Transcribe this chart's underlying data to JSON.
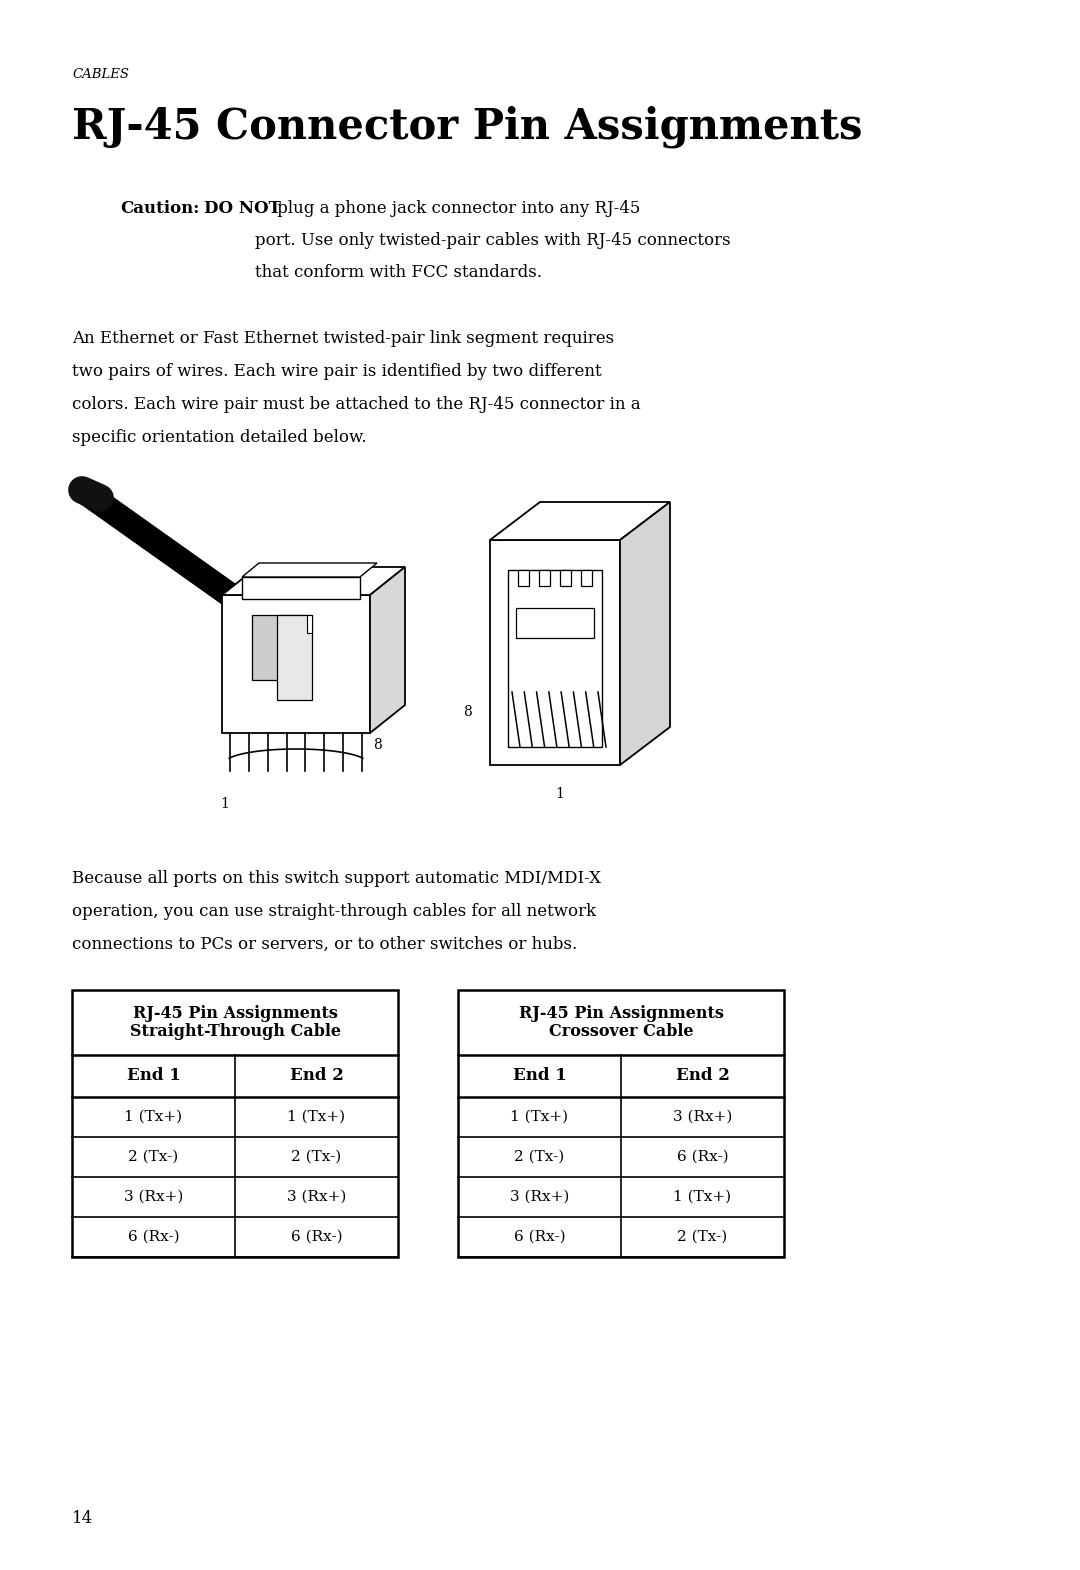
{
  "page_title": "RJ-45 Connector Pin Assignments",
  "section_label": "CABLES",
  "caution_label": "Caution:",
  "caution_bold2": "DO NOT",
  "caution_line1_rest": " plug a phone jack connector into any RJ-45",
  "caution_line2": "port. Use only twisted-pair cables with RJ-45 connectors",
  "caution_line3": "that conform with FCC standards.",
  "body_text1_lines": [
    "An Ethernet or Fast Ethernet twisted-pair link segment requires",
    "two pairs of wires. Each wire pair is identified by two different",
    "colors. Each wire pair must be attached to the RJ-45 connector in a",
    "specific orientation detailed below."
  ],
  "body_text2_lines": [
    "Because all ports on this switch support automatic MDI/MDI-X",
    "operation, you can use straight-through cables for all network",
    "connections to PCs or servers, or to other switches or hubs."
  ],
  "table1_title_line1": "RJ-45 Pin Assignments",
  "table1_title_line2": "Straight-Through Cable",
  "table2_title_line1": "RJ-45 Pin Assignments",
  "table2_title_line2": "Crossover Cable",
  "col_headers": [
    "End 1",
    "End 2"
  ],
  "table1_rows": [
    [
      "1 (Tx+)",
      "1 (Tx+)"
    ],
    [
      "2 (Tx-)",
      "2 (Tx-)"
    ],
    [
      "3 (Rx+)",
      "3 (Rx+)"
    ],
    [
      "6 (Rx-)",
      "6 (Rx-)"
    ]
  ],
  "table2_rows": [
    [
      "1 (Tx+)",
      "3 (Rx+)"
    ],
    [
      "2 (Tx-)",
      "6 (Rx-)"
    ],
    [
      "3 (Rx+)",
      "1 (Tx+)"
    ],
    [
      "6 (Rx-)",
      "2 (Tx-)"
    ]
  ],
  "page_number": "14",
  "bg_color": "#ffffff",
  "text_color": "#000000"
}
